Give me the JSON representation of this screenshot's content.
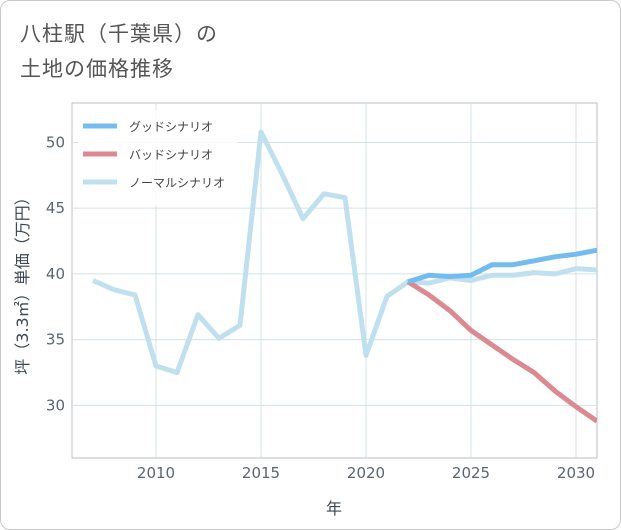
{
  "title": {
    "line1": "八柱駅（千葉県）の",
    "line2": "土地の価格推移"
  },
  "chart_data": {
    "type": "line",
    "title": "八柱駅（千葉県）の土地の価格推移",
    "xlabel": "年",
    "ylabel": "坪（3.3㎡）単価（万円）",
    "xlim": [
      2006,
      2031
    ],
    "ylim": [
      26,
      53
    ],
    "xticks": [
      2010,
      2015,
      2020,
      2025,
      2030
    ],
    "yticks": [
      30,
      35,
      40,
      45,
      50
    ],
    "grid": true,
    "legend_position": "top-left",
    "series": [
      {
        "name": "グッドシナリオ",
        "color": "#74bcf0",
        "x": [
          2022,
          2023,
          2024,
          2025,
          2026,
          2027,
          2028,
          2029,
          2030,
          2031
        ],
        "y": [
          39.4,
          39.9,
          39.8,
          39.9,
          40.7,
          40.7,
          41.0,
          41.3,
          41.5,
          41.8
        ]
      },
      {
        "name": "バッドシナリオ",
        "color": "#db8a92",
        "x": [
          2022,
          2023,
          2024,
          2025,
          2026,
          2027,
          2028,
          2029,
          2030,
          2031
        ],
        "y": [
          39.4,
          38.4,
          37.2,
          35.7,
          34.6,
          33.5,
          32.5,
          31.1,
          29.9,
          28.8
        ]
      },
      {
        "name": "ノーマルシナリオ",
        "color": "#c0e0ef",
        "x": [
          2007,
          2008,
          2009,
          2010,
          2011,
          2012,
          2013,
          2014,
          2015,
          2016,
          2017,
          2018,
          2019,
          2020,
          2021,
          2022,
          2023,
          2024,
          2025,
          2026,
          2027,
          2028,
          2029,
          2030,
          2031
        ],
        "y": [
          39.5,
          38.8,
          38.4,
          33.0,
          32.5,
          36.9,
          35.1,
          36.1,
          50.8,
          47.6,
          44.2,
          46.1,
          45.8,
          33.8,
          38.3,
          39.4,
          39.3,
          39.7,
          39.5,
          39.9,
          39.9,
          40.1,
          40.0,
          40.4,
          40.3
        ]
      }
    ]
  }
}
